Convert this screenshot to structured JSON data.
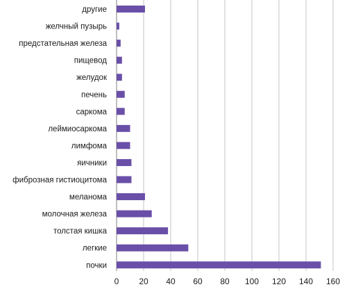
{
  "chart_data": {
    "type": "bar",
    "orientation": "horizontal",
    "categories": [
      "другие",
      "желчный пузырь",
      "предстательная железа",
      "пищевод",
      "желудок",
      "печень",
      "саркома",
      "леймиосаркома",
      "лимфома",
      "яичники",
      "фиброзная гистиоцитома",
      "меланома",
      "молочная железа",
      "толстая кишка",
      "легкие",
      "почки"
    ],
    "values": [
      21,
      2,
      3,
      4,
      4,
      6,
      6,
      10,
      10,
      11,
      11,
      21,
      26,
      38,
      53,
      151
    ],
    "xlim": [
      0,
      160
    ],
    "xticks": [
      "0",
      "20",
      "40",
      "60",
      "80",
      "100",
      "120",
      "140",
      "160"
    ],
    "grid": "vertical",
    "bar_color": "#6a4fa8",
    "title": "",
    "xlabel": "",
    "ylabel": ""
  }
}
